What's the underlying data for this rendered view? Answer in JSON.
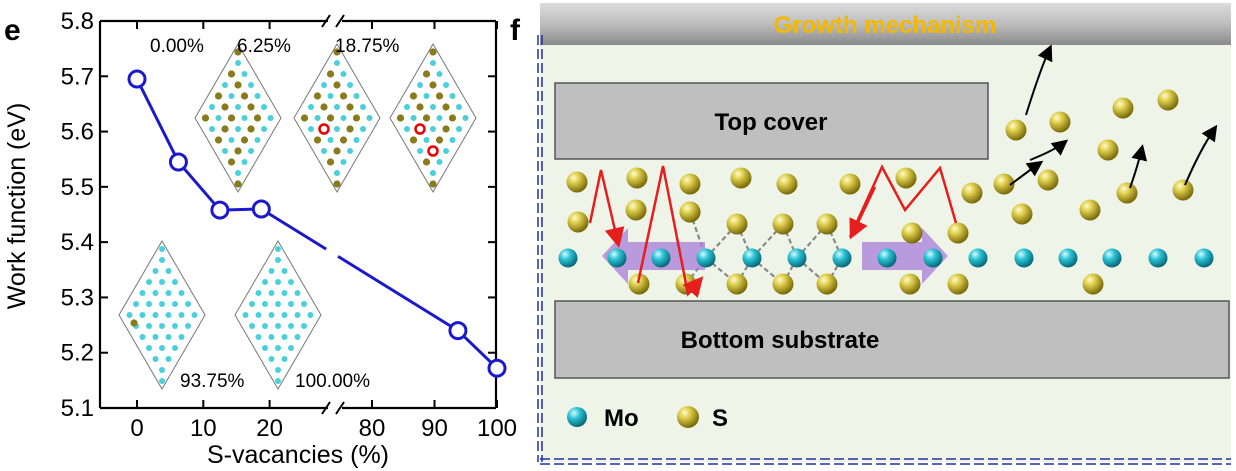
{
  "panel_e": {
    "letter": "e",
    "chart_data": {
      "type": "line",
      "xlabel": "S-vacancies (%)",
      "ylabel": "Work function (eV)",
      "x_break": "//",
      "ylim": [
        5.1,
        5.8
      ],
      "yticks": [
        "5.1",
        "5.2",
        "5.3",
        "5.4",
        "5.5",
        "5.6",
        "5.7",
        "5.8"
      ],
      "xticks_left": [
        "0",
        "10",
        "20"
      ],
      "xticks_right": [
        "80",
        "90",
        "100"
      ],
      "series": [
        {
          "x": [
            0,
            6.25,
            12.5,
            18.75,
            93.75,
            100
          ],
          "y": [
            5.695,
            5.545,
            5.458,
            5.46,
            5.24,
            5.172
          ]
        }
      ],
      "inset_labels": [
        "0.00%",
        "6.25%",
        "18.75%",
        "93.75%",
        "100.00%"
      ],
      "line_color": "#1a1acc"
    }
  },
  "panel_f": {
    "letter": "f",
    "title": "Growth mechanism",
    "top_label": "Top cover",
    "bottom_label": "Bottom substrate",
    "legend": [
      {
        "label": "Mo",
        "color": "#1bb5c8"
      },
      {
        "label": "S",
        "color": "#c8b828"
      }
    ],
    "title_color": "#f5b800",
    "background_color": "#eef5e8"
  }
}
